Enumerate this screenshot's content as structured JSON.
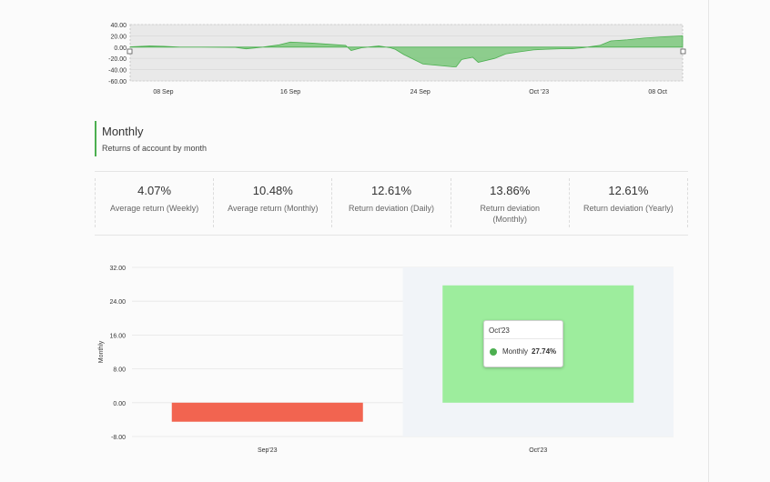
{
  "top_chart": {
    "y_ticks": [
      "40.00",
      "20.00",
      "0.00",
      "-20.00",
      "-40.00",
      "-60.00"
    ],
    "x_ticks": [
      "08 Sep",
      "16 Sep",
      "24 Sep",
      "Oct '23",
      "08 Oct"
    ],
    "series_color": "#7cc87c"
  },
  "monthly": {
    "title": "Monthly",
    "subtitle": "Returns of account by month"
  },
  "stats": [
    {
      "value": "4.07%",
      "label": "Average return (Weekly)"
    },
    {
      "value": "10.48%",
      "label": "Average return (Monthly)"
    },
    {
      "value": "12.61%",
      "label": "Return deviation (Daily)"
    },
    {
      "value": "13.86%",
      "label": "Return deviation (Monthly)"
    },
    {
      "value": "12.61%",
      "label": "Return deviation (Yearly)"
    }
  ],
  "chart_data": {
    "type": "bar",
    "categories": [
      "Sep'23",
      "Oct'23"
    ],
    "series": [
      {
        "name": "Monthly",
        "values": [
          -4.5,
          27.74
        ]
      }
    ],
    "ylabel": "Monthly",
    "ylim": [
      -8,
      32
    ],
    "y_ticks": [
      "32.00",
      "24.00",
      "16.00",
      "8.00",
      "0.00",
      "-8.00"
    ],
    "colors": {
      "negative": "#f26450",
      "positive": "#9ded9d",
      "hover_band": "#f1f4f8"
    },
    "grid": true
  },
  "tooltip": {
    "title": "Oct'23",
    "series": "Monthly",
    "value": "27.74%"
  }
}
